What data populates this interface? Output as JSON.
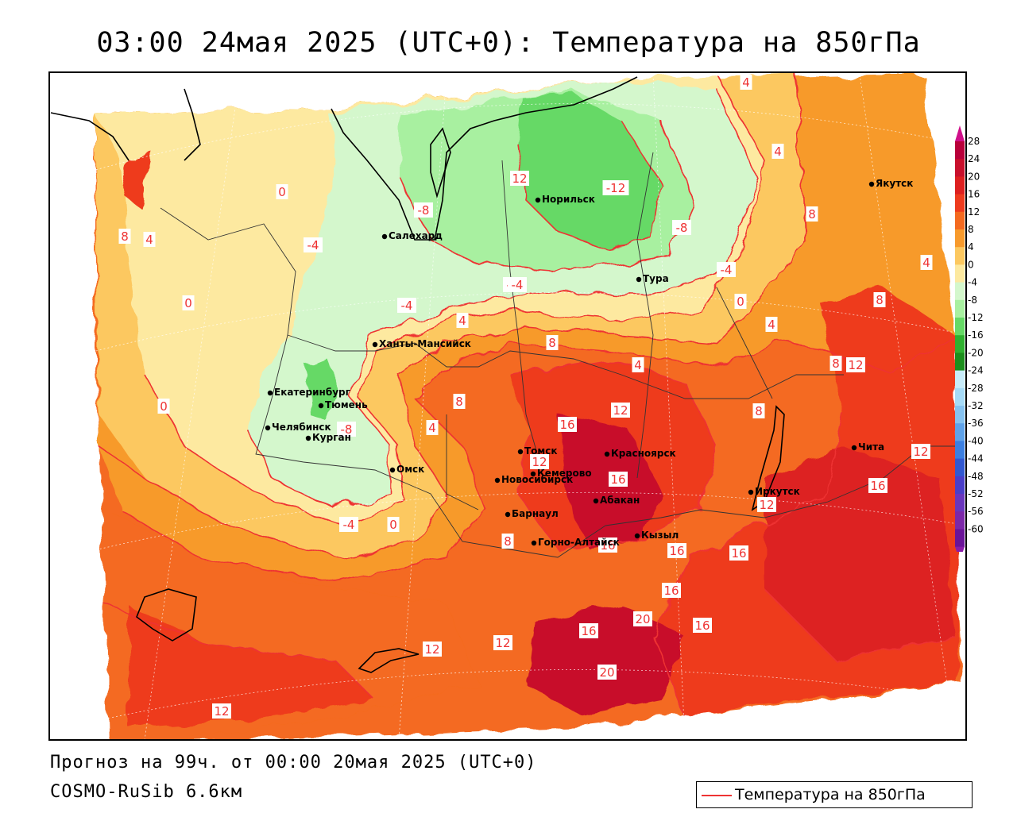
{
  "title": "03:00 24мая 2025 (UTC+0): Температура на 850гПа",
  "forecast_line": "Прогноз на 99ч. от 00:00 20мая 2025 (UTC+0)",
  "model_line": "COSMO-RuSib 6.6км",
  "legend": {
    "series_label": "Температура на 850гПа",
    "line_color": "#ee3333"
  },
  "colorbar": {
    "ticks": [
      "28",
      "24",
      "20",
      "16",
      "12",
      "8",
      "4",
      "0",
      "-4",
      "-8",
      "-12",
      "-16",
      "-20",
      "-24",
      "-28",
      "-32",
      "-36",
      "-40",
      "-44",
      "-48",
      "-52",
      "-56",
      "-60"
    ],
    "colors": [
      "#b8003a",
      "#c8102c",
      "#dd2020",
      "#ee3b1e",
      "#f46a20",
      "#f79a2c",
      "#fcc860",
      "#fde9a0",
      "#d4f7cc",
      "#a8f0a0",
      "#66d966",
      "#2fb02f",
      "#1c8e1c",
      "#c8ecfa",
      "#a6daf6",
      "#86c2ef",
      "#5fa2e8",
      "#3c7fe0",
      "#3158d0",
      "#4a3ec8",
      "#6a36bc",
      "#7c28a8",
      "#6a1498"
    ]
  },
  "cities": [
    {
      "name": "Якутск"
    },
    {
      "name": "Норильск"
    },
    {
      "name": "Салехард"
    },
    {
      "name": "Тура"
    },
    {
      "name": "Ханты-Мансийск"
    },
    {
      "name": "Екатеринбург"
    },
    {
      "name": "Тюмень"
    },
    {
      "name": "Челябинск"
    },
    {
      "name": "Курган"
    },
    {
      "name": "Омск"
    },
    {
      "name": "Новосибирск"
    },
    {
      "name": "Томск"
    },
    {
      "name": "Кемерово"
    },
    {
      "name": "Красноярск"
    },
    {
      "name": "Барнаул"
    },
    {
      "name": "Абакан"
    },
    {
      "name": "Горно-Алтайск"
    },
    {
      "name": "Кызыл"
    },
    {
      "name": "Иркутск"
    },
    {
      "name": "Чита"
    }
  ],
  "isotherm_labels": [
    "4",
    "4",
    "8",
    "12",
    "-12",
    "-8",
    "-8",
    "-4",
    "-4",
    "0",
    "8",
    "4",
    "0",
    "4",
    "8",
    "-4",
    "-4",
    "4",
    "8",
    "4",
    "0",
    "4",
    "8",
    "12",
    "12",
    "16",
    "-8",
    "0",
    "-4",
    "4",
    "8",
    "12",
    "16",
    "8",
    "16",
    "16",
    "16",
    "16",
    "20",
    "16",
    "16",
    "20",
    "12",
    "12",
    "8",
    "12",
    "12",
    "16",
    "12",
    "0",
    "-4"
  ]
}
